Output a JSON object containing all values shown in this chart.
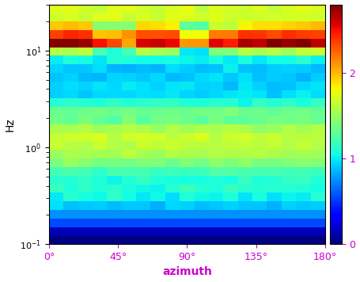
{
  "title": "",
  "xlabel": "azimuth",
  "ylabel": "Hz",
  "xlabel_color": "#cc00cc",
  "ylabel_color": "#000000",
  "tick_color": "#cc00cc",
  "colorbar_ticks": [
    0,
    1,
    2
  ],
  "colorbar_tick_color": "#cc00cc",
  "colorbar_vmin": 0,
  "colorbar_vmax": 2.8,
  "freq_min": 0.1,
  "freq_max": 30.0,
  "azimuth_min": 0,
  "azimuth_max": 180,
  "xtick_positions": [
    0,
    45,
    90,
    135,
    180
  ],
  "xtick_labels": [
    "0°",
    "45°",
    "90°",
    "135°",
    "180°"
  ],
  "peak_freq": 13.34,
  "n_azimuth": 19,
  "n_freq": 28,
  "background_color": "#ffffff",
  "cmap": "jet"
}
